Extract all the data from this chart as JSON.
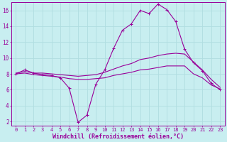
{
  "background_color": "#c8eef0",
  "line_color": "#990099",
  "grid_color": "#b0dde0",
  "xlabel": "Windchill (Refroidissement éolien,°C)",
  "xlabel_fontsize": 6.0,
  "tick_fontsize": 5.0,
  "ylim": [
    1.5,
    17.0
  ],
  "xlim": [
    -0.5,
    23.5
  ],
  "yticks": [
    2,
    4,
    6,
    8,
    10,
    12,
    14,
    16
  ],
  "xticks": [
    0,
    1,
    2,
    3,
    4,
    5,
    6,
    7,
    8,
    9,
    10,
    11,
    12,
    13,
    14,
    15,
    16,
    17,
    18,
    19,
    20,
    21,
    22,
    23
  ],
  "hours": [
    0,
    1,
    2,
    3,
    4,
    5,
    6,
    7,
    8,
    9,
    10,
    11,
    12,
    13,
    14,
    15,
    16,
    17,
    18,
    19,
    20,
    21,
    22,
    23
  ],
  "temp_line1": [
    8.0,
    8.5,
    8.1,
    7.9,
    7.8,
    7.5,
    6.2,
    1.9,
    2.8,
    6.7,
    8.5,
    11.2,
    13.5,
    14.3,
    16.0,
    15.6,
    16.8,
    16.1,
    14.6,
    11.1,
    9.4,
    8.4,
    6.8,
    6.0
  ],
  "temp_line2": [
    8.1,
    8.3,
    8.1,
    8.1,
    8.0,
    7.9,
    7.8,
    7.7,
    7.8,
    7.9,
    8.2,
    8.6,
    9.0,
    9.3,
    9.8,
    10.0,
    10.3,
    10.5,
    10.6,
    10.5,
    9.5,
    8.5,
    7.3,
    6.3
  ],
  "temp_line3": [
    8.0,
    8.1,
    7.9,
    7.8,
    7.7,
    7.6,
    7.4,
    7.3,
    7.3,
    7.4,
    7.5,
    7.8,
    8.0,
    8.2,
    8.5,
    8.6,
    8.8,
    9.0,
    9.0,
    9.0,
    8.0,
    7.5,
    6.6,
    6.1
  ]
}
